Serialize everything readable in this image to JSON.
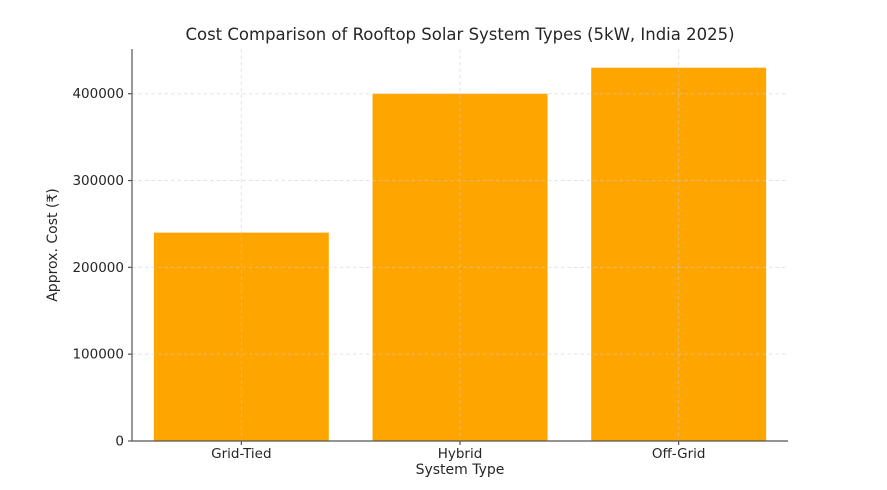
{
  "figure": {
    "background": "#ffffff"
  },
  "chart_data": {
    "type": "bar",
    "title": "Cost Comparison of Rooftop Solar System Types (5kW, India 2025)",
    "categories": [
      "Grid-Tied",
      "Hybrid",
      "Off-Grid"
    ],
    "values": [
      240000,
      400000,
      430000
    ],
    "xlabel": "System Type",
    "ylabel": "Approx. Cost (₹)",
    "yticks": [
      0,
      100000,
      200000,
      300000,
      400000
    ],
    "ylim": [
      0,
      451500
    ],
    "bar_width_fraction": 0.8,
    "bar_color": "#FFA500",
    "grid": true,
    "grid_color": "#cccccc",
    "grid_opacity": 0.55,
    "axis_color": "#555555",
    "text_color": "#262626",
    "legend_position": "none"
  }
}
